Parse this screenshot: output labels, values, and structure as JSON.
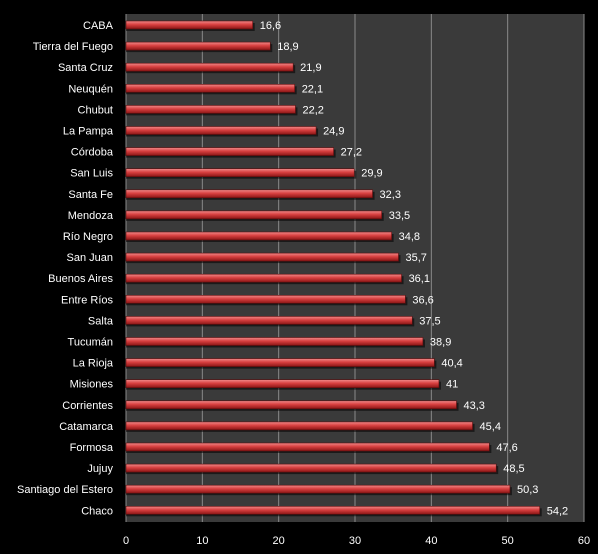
{
  "chart_data": {
    "type": "bar",
    "orientation": "horizontal",
    "categories": [
      "CABA",
      "Tierra del Fuego",
      "Santa Cruz",
      "Neuquén",
      "Chubut",
      "La Pampa",
      "Córdoba",
      "San Luis",
      "Santa Fe",
      "Mendoza",
      "Río Negro",
      "San Juan",
      "Buenos Aires",
      "Entre Ríos",
      "Salta",
      "Tucumán",
      "La Rioja",
      "Misiones",
      "Corrientes",
      "Catamarca",
      "Formosa",
      "Jujuy",
      "Santiago del Estero",
      "Chaco"
    ],
    "values": [
      16.6,
      18.9,
      21.9,
      22.1,
      22.2,
      24.9,
      27.2,
      29.9,
      32.3,
      33.5,
      34.8,
      35.7,
      36.1,
      36.6,
      37.5,
      38.9,
      40.4,
      41,
      43.3,
      45.4,
      47.6,
      48.5,
      50.3,
      54.2
    ],
    "value_labels": [
      "16,6",
      "18,9",
      "21,9",
      "22,1",
      "22,2",
      "24,9",
      "27,2",
      "29,9",
      "32,3",
      "33,5",
      "34,8",
      "35,7",
      "36,1",
      "36,6",
      "37,5",
      "38,9",
      "40,4",
      "41",
      "43,3",
      "45,4",
      "47,6",
      "48,5",
      "50,3",
      "54,2"
    ],
    "xlim": [
      0,
      60
    ],
    "xticks": [
      0,
      10,
      20,
      30,
      40,
      50,
      60
    ],
    "title": "",
    "xlabel": "",
    "ylabel": "",
    "grid": "vertical",
    "legend": "none",
    "colors": {
      "background": "#000000",
      "plot_area": "#3a3a3a",
      "bar": "#e05050",
      "gridline": "#8a8a8a",
      "text": "#ffffff"
    }
  }
}
